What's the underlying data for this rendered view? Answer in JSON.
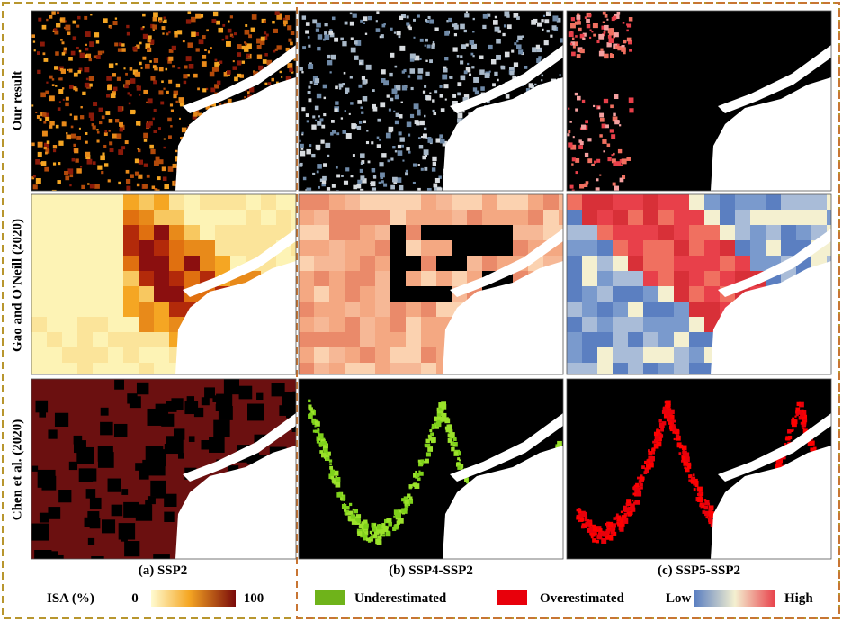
{
  "row_labels": [
    "Our result",
    "Gao and O'Neill (2020)",
    "Chen et al. (2020)"
  ],
  "columns": [
    {
      "caption": "(a) SSP2"
    },
    {
      "caption": "(b) SSP4-SSP2"
    },
    {
      "caption": "(c) SSP5-SSP2"
    }
  ],
  "legend": {
    "isa_title": "ISA (%)",
    "isa_min": 0,
    "isa_max": 100,
    "underestimated": "Underestimated",
    "overestimated": "Overestimated",
    "low": "Low",
    "high": "High"
  }
}
